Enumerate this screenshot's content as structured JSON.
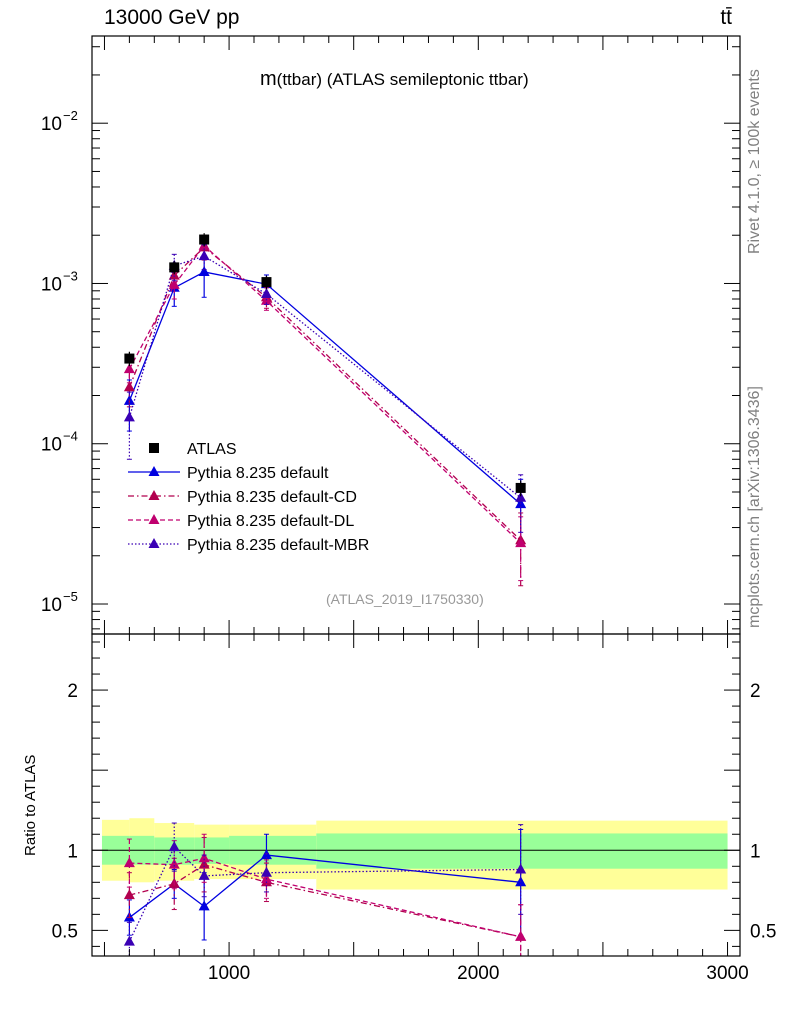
{
  "header": {
    "left": "13000 GeV pp",
    "right": "tt̄"
  },
  "side_texts": {
    "rivet": "Rivet 4.1.0, ≥ 100k events",
    "mcplots": "mcplots.cern.ch [arXiv:1306.3436]"
  },
  "chart_data": [
    {
      "type": "scatter",
      "panel": "main",
      "title": "m(ttbar) (ATLAS semileptonic ttbar)",
      "title_m": "m",
      "title_rest": "(ttbar) (ATLAS semileptonic ttbar)",
      "watermark": "(ATLAS_2019_I1750330)",
      "xlabel": "",
      "ylabel": "",
      "yscale": "log",
      "xlim": [
        450,
        3050
      ],
      "ylim": [
        6.5e-06,
        0.035
      ],
      "ytick_labels": [
        {
          "value": 0.01,
          "base": "10",
          "exp": "−2"
        },
        {
          "value": 0.001,
          "base": "10",
          "exp": "−3"
        },
        {
          "value": 0.0001,
          "base": "10",
          "exp": "−4"
        },
        {
          "value": 1e-05,
          "base": "10",
          "exp": "−5"
        }
      ],
      "legend_position": "bottom-left",
      "data": {
        "name": "ATLAS",
        "x": [
          600,
          780,
          900,
          1150,
          2170
        ],
        "y": [
          0.00034,
          0.00126,
          0.00188,
          0.00102,
          5.3e-05
        ],
        "yerr_lo": [
          3.5e-05,
          0.00012,
          0.00018,
          0.0001,
          6e-06
        ],
        "yerr_hi": [
          3.5e-05,
          0.00012,
          0.00018,
          0.0001,
          6e-06
        ]
      },
      "series": [
        {
          "name": "Pythia 8.235 default",
          "color": "#0000e0",
          "style": "solid",
          "x": [
            600,
            780,
            900,
            1150,
            2170
          ],
          "y": [
            0.000185,
            0.00094,
            0.00118,
            0.00099,
            4.2e-05
          ],
          "ylo": [
            0.00012,
            0.00072,
            0.00082,
            0.00085,
            2.5e-05
          ],
          "yhi": [
            0.00025,
            0.00113,
            0.0015,
            0.00113,
            6e-05
          ]
        },
        {
          "name": "Pythia 8.235 default-CD",
          "color": "#b2004e",
          "style": "dashdot",
          "x": [
            600,
            780,
            900,
            1150,
            2170
          ],
          "y": [
            0.000225,
            0.00112,
            0.00168,
            0.00082,
            2.5e-05
          ],
          "ylo": [
            0.00017,
            0.00095,
            0.0014,
            0.0007,
            1.3e-05
          ],
          "yhi": [
            0.00028,
            0.0013,
            0.002,
            0.00094,
            3.7e-05
          ]
        },
        {
          "name": "Pythia 8.235 default-DL",
          "color": "#c0006f",
          "style": "dashed",
          "x": [
            600,
            780,
            900,
            1150,
            2170
          ],
          "y": [
            0.000292,
            0.00098,
            0.00172,
            0.00078,
            2.4e-05
          ],
          "ylo": [
            0.00024,
            0.0008,
            0.00145,
            0.00068,
            1.4e-05
          ],
          "yhi": [
            0.00034,
            0.00118,
            0.002,
            0.00088,
            3.5e-05
          ]
        },
        {
          "name": "Pythia 8.235 default-MBR",
          "color": "#3a00b4",
          "style": "dotted",
          "x": [
            600,
            780,
            900,
            1150,
            2170
          ],
          "y": [
            0.000146,
            0.00129,
            0.00148,
            0.00086,
            4.6e-05
          ],
          "ylo": [
            8e-05,
            0.00104,
            0.00122,
            0.00074,
            2.8e-05
          ],
          "yhi": [
            0.00021,
            0.00152,
            0.00174,
            0.00098,
            6.4e-05
          ]
        }
      ]
    },
    {
      "type": "scatter",
      "panel": "ratio",
      "ylabel": "Ratio to ATLAS",
      "xlim": [
        450,
        3050
      ],
      "ylim": [
        0.34,
        2.35
      ],
      "xticks": [
        1000,
        2000,
        3000
      ],
      "yticks": [
        0.5,
        1,
        2
      ],
      "bands": [
        {
          "x0": 490,
          "x1": 600,
          "stat": [
            0.91,
            1.09
          ],
          "total": [
            0.81,
            1.19
          ]
        },
        {
          "x0": 600,
          "x1": 700,
          "stat": [
            0.91,
            1.09
          ],
          "total": [
            0.8,
            1.2
          ]
        },
        {
          "x0": 700,
          "x1": 860,
          "stat": [
            0.91,
            1.08
          ],
          "total": [
            0.81,
            1.17
          ]
        },
        {
          "x0": 860,
          "x1": 1000,
          "stat": [
            0.915,
            1.08
          ],
          "total": [
            0.82,
            1.16
          ]
        },
        {
          "x0": 1000,
          "x1": 1350,
          "stat": [
            0.91,
            1.09
          ],
          "total": [
            0.82,
            1.16
          ]
        },
        {
          "x0": 1350,
          "x1": 3000,
          "stat": [
            0.885,
            1.105
          ],
          "total": [
            0.755,
            1.185
          ]
        }
      ],
      "series": [
        {
          "name": "Pythia 8.235 default",
          "color": "#0000e0",
          "style": "solid",
          "x": [
            600,
            780,
            900,
            1150,
            2170
          ],
          "y": [
            0.58,
            0.79,
            0.65,
            0.97,
            0.8
          ],
          "ylo": [
            0.47,
            0.7,
            0.44,
            0.84,
            0.47
          ],
          "yhi": [
            0.69,
            0.88,
            0.86,
            1.1,
            1.13
          ]
        },
        {
          "name": "Pythia 8.235 default-CD",
          "color": "#b2004e",
          "style": "dashdot",
          "x": [
            600,
            780,
            900,
            1150,
            2170
          ],
          "y": [
            0.72,
            0.79,
            0.91,
            0.8,
            0.46
          ],
          "ylo": [
            0.58,
            0.63,
            0.74,
            0.68,
            0.27
          ],
          "yhi": [
            0.86,
            0.95,
            1.08,
            0.92,
            0.66
          ]
        },
        {
          "name": "Pythia 8.235 default-DL",
          "color": "#c0006f",
          "style": "dashed",
          "x": [
            600,
            780,
            900,
            1150,
            2170
          ],
          "y": [
            0.92,
            0.91,
            0.95,
            0.82,
            0.46
          ],
          "ylo": [
            0.77,
            0.76,
            0.8,
            0.7,
            0.27
          ],
          "yhi": [
            1.07,
            1.06,
            1.1,
            0.94,
            0.66
          ]
        },
        {
          "name": "Pythia 8.235 default-MBR",
          "color": "#3a00b4",
          "style": "dotted",
          "x": [
            600,
            780,
            900,
            1150,
            2170
          ],
          "y": [
            0.43,
            1.02,
            0.84,
            0.86,
            0.88
          ],
          "ylo": [
            0.31,
            0.87,
            0.71,
            0.74,
            0.6
          ],
          "yhi": [
            0.55,
            1.17,
            0.97,
            0.98,
            1.16
          ]
        }
      ]
    }
  ]
}
